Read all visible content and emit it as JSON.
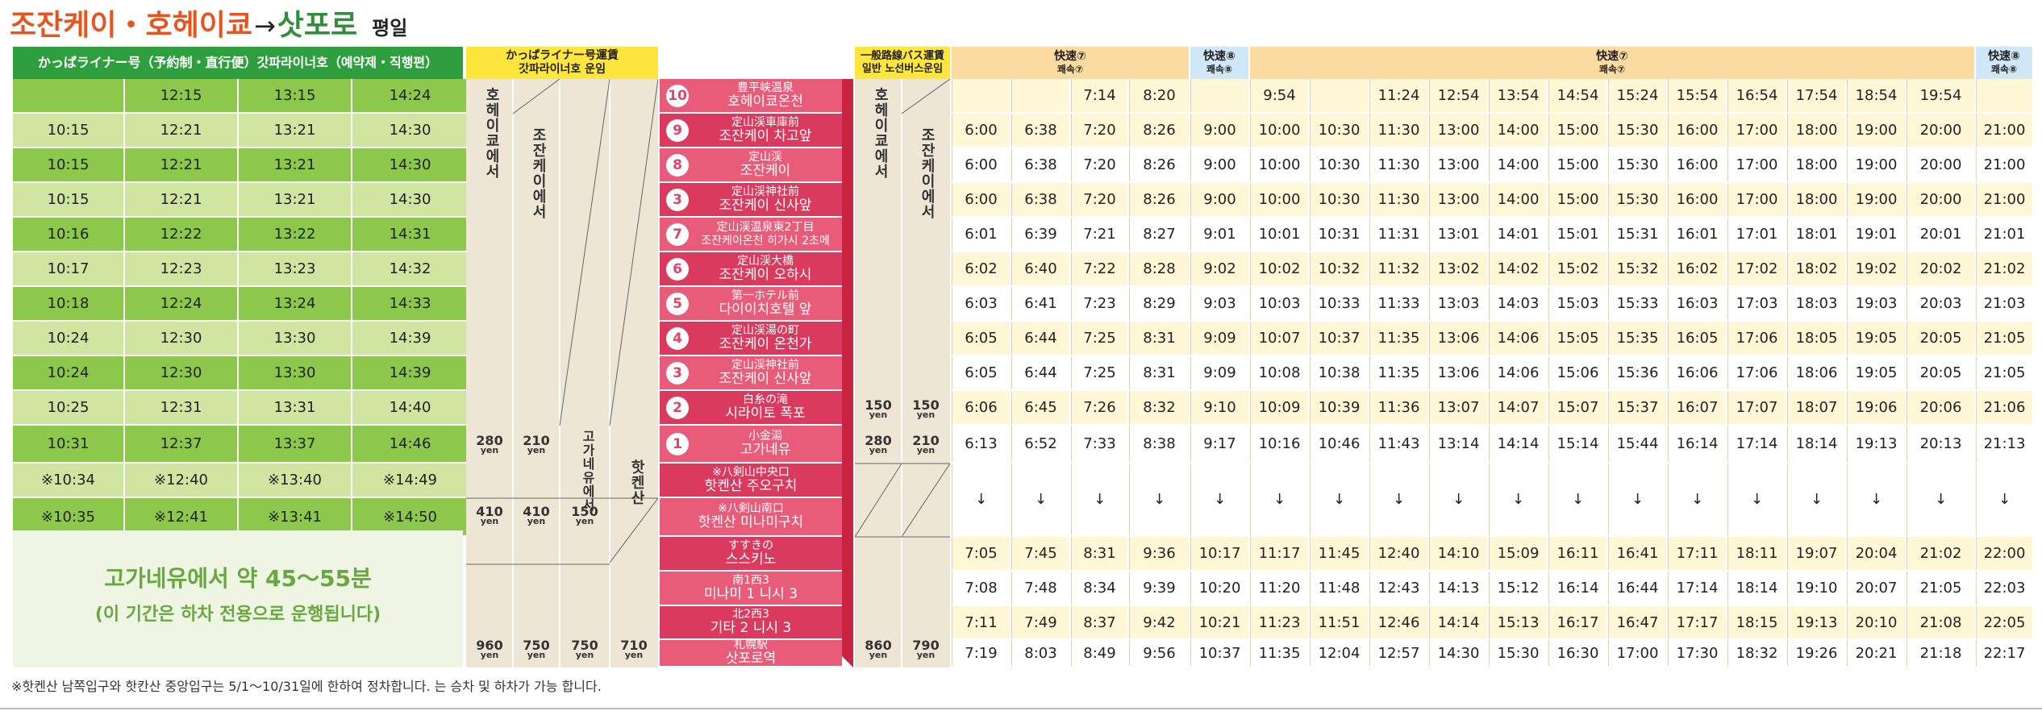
{
  "title": {
    "from_to": "조잔케이・호헤이쿄",
    "arrow": "→",
    "to": "삿포로",
    "day": "평일"
  },
  "colors": {
    "green_header": "#2f9e3e",
    "green_dark": "#8cc84b",
    "green_light": "#cfe5a0",
    "fare_bg": "#ede6d4",
    "stop_pink": "#e85c7a",
    "stop_dark": "#d93a5e",
    "cream": "#fff7d6",
    "orange_header": "#fcdba0",
    "blue_header": "#cfe7f6",
    "yellow_header": "#ffe63c"
  },
  "kappa": {
    "header": "かっぱライナー号（予約制・直行便）갓파라이너호（예약제・직행편）",
    "rows": [
      [
        "",
        "12:15",
        "13:15",
        "14:24"
      ],
      [
        "10:15",
        "12:21",
        "13:21",
        "14:30"
      ],
      [
        "10:15",
        "12:21",
        "13:21",
        "14:30"
      ],
      [
        "10:15",
        "12:21",
        "13:21",
        "14:30"
      ],
      [
        "10:16",
        "12:22",
        "13:22",
        "14:31"
      ],
      [
        "10:17",
        "12:23",
        "13:23",
        "14:32"
      ],
      [
        "10:18",
        "12:24",
        "13:24",
        "14:33"
      ],
      [
        "10:24",
        "12:30",
        "13:30",
        "14:39"
      ],
      [
        "10:24",
        "12:30",
        "13:30",
        "14:39"
      ],
      [
        "10:25",
        "12:31",
        "13:31",
        "14:40"
      ],
      [
        "10:31",
        "12:37",
        "13:37",
        "14:46"
      ],
      [
        "※10:34",
        "※12:40",
        "※13:40",
        "※14:49"
      ],
      [
        "※10:35",
        "※12:41",
        "※13:41",
        "※14:50"
      ]
    ],
    "note_main": "고가네유에서 약 45～55분",
    "note_sub": "(이 기간은 하차 전용으로 운행됩니다)"
  },
  "kappa_fare": {
    "header_jp": "かっぱライナー号運賃",
    "header_kr": "갓파라이너호 운임",
    "col1": "호헤이쿄에서",
    "col2": "조잔케이에서",
    "col3": "고가네유에서",
    "col4": "핫켄산",
    "f280": "280",
    "f210": "210",
    "f410a": "410",
    "f410b": "410",
    "f150": "150",
    "f960": "960",
    "f750a": "750",
    "f750b": "750",
    "f710": "710",
    "yen": "yen"
  },
  "stops": [
    {
      "num": "10",
      "jp": "豊平峡温泉",
      "kr": "호헤이쿄온천"
    },
    {
      "num": "9",
      "jp": "定山渓車庫前",
      "kr": "조잔케이 차고앞"
    },
    {
      "num": "8",
      "jp": "定山渓",
      "kr": "조잔케이"
    },
    {
      "num": "3",
      "jp": "定山渓神社前",
      "kr": "조잔케이 신사앞"
    },
    {
      "num": "7",
      "jp": "定山渓温泉東2丁目",
      "kr": "조잔케이온천 히가시 2초메"
    },
    {
      "num": "6",
      "jp": "定山渓大橋",
      "kr": "조잔케이 오하시"
    },
    {
      "num": "5",
      "jp": "第一ホテル前",
      "kr": "다이이치호텔 앞"
    },
    {
      "num": "4",
      "jp": "定山渓湯の町",
      "kr": "조잔케이 온천가"
    },
    {
      "num": "3",
      "jp": "定山渓神社前",
      "kr": "조잔케이 신사앞"
    },
    {
      "num": "2",
      "jp": "白糸の滝",
      "kr": "시라이토 폭포"
    },
    {
      "num": "1",
      "jp": "小金湯",
      "kr": "고가네유"
    },
    {
      "num": "",
      "jp": "※八剣山中央口",
      "kr": "핫켄산 주오구치"
    },
    {
      "num": "",
      "jp": "※八剣山南口",
      "kr": "핫켄산 미나미구치"
    },
    {
      "num": "",
      "jp": "すすきの",
      "kr": "스스키노"
    },
    {
      "num": "",
      "jp": "南1西3",
      "kr": "미나미 1 니시 3"
    },
    {
      "num": "",
      "jp": "北2西3",
      "kr": "기타 2 니시 3"
    },
    {
      "num": "",
      "jp": "札幌駅",
      "kr": "삿포로역"
    }
  ],
  "bus_fare": {
    "header_jp": "一般路線バス運賃",
    "header_kr": "일반 노선버스운임",
    "col1": "호헤이쿄에서",
    "col2": "조잔케이에서",
    "f150a": "150",
    "f150b": "150",
    "f280": "280",
    "f210": "210",
    "f860": "860",
    "f790": "790",
    "yen": "yen"
  },
  "bus": {
    "headers": [
      {
        "jp": "快速⑦",
        "kr": "쾌속⑦"
      },
      {
        "jp": "快速⑧",
        "kr": "쾌속⑧"
      },
      {
        "jp": "快速⑦",
        "kr": "쾌속⑦"
      },
      {
        "jp": "快速⑧",
        "kr": "쾌속⑧"
      }
    ],
    "rows": [
      [
        "",
        "",
        "7:14",
        "8:20",
        "",
        "9:54",
        "",
        "11:24",
        "12:54",
        "13:54",
        "14:54",
        "15:24",
        "15:54",
        "16:54",
        "17:54",
        "18:54",
        "19:54",
        ""
      ],
      [
        "6:00",
        "6:38",
        "7:20",
        "8:26",
        "9:00",
        "10:00",
        "10:30",
        "11:30",
        "13:00",
        "14:00",
        "15:00",
        "15:30",
        "16:00",
        "17:00",
        "18:00",
        "19:00",
        "20:00",
        "21:00"
      ],
      [
        "6:00",
        "6:38",
        "7:20",
        "8:26",
        "9:00",
        "10:00",
        "10:30",
        "11:30",
        "13:00",
        "14:00",
        "15:00",
        "15:30",
        "16:00",
        "17:00",
        "18:00",
        "19:00",
        "20:00",
        "21:00"
      ],
      [
        "6:00",
        "6:38",
        "7:20",
        "8:26",
        "9:00",
        "10:00",
        "10:30",
        "11:30",
        "13:00",
        "14:00",
        "15:00",
        "15:30",
        "16:00",
        "17:00",
        "18:00",
        "19:00",
        "20:00",
        "21:00"
      ],
      [
        "6:01",
        "6:39",
        "7:21",
        "8:27",
        "9:01",
        "10:01",
        "10:31",
        "11:31",
        "13:01",
        "14:01",
        "15:01",
        "15:31",
        "16:01",
        "17:01",
        "18:01",
        "19:01",
        "20:01",
        "21:01"
      ],
      [
        "6:02",
        "6:40",
        "7:22",
        "8:28",
        "9:02",
        "10:02",
        "10:32",
        "11:32",
        "13:02",
        "14:02",
        "15:02",
        "15:32",
        "16:02",
        "17:02",
        "18:02",
        "19:02",
        "20:02",
        "21:02"
      ],
      [
        "6:03",
        "6:41",
        "7:23",
        "8:29",
        "9:03",
        "10:03",
        "10:33",
        "11:33",
        "13:03",
        "14:03",
        "15:03",
        "15:33",
        "16:03",
        "17:03",
        "18:03",
        "19:03",
        "20:03",
        "21:03"
      ],
      [
        "6:05",
        "6:44",
        "7:25",
        "8:31",
        "9:09",
        "10:07",
        "10:37",
        "11:35",
        "13:06",
        "14:06",
        "15:05",
        "15:35",
        "16:05",
        "17:06",
        "18:05",
        "19:05",
        "20:05",
        "21:05"
      ],
      [
        "6:05",
        "6:44",
        "7:25",
        "8:31",
        "9:09",
        "10:08",
        "10:38",
        "11:35",
        "13:06",
        "14:06",
        "15:06",
        "15:36",
        "16:06",
        "17:06",
        "18:06",
        "19:05",
        "20:05",
        "21:05"
      ],
      [
        "6:06",
        "6:45",
        "7:26",
        "8:32",
        "9:10",
        "10:09",
        "10:39",
        "11:36",
        "13:07",
        "14:07",
        "15:07",
        "15:37",
        "16:07",
        "17:07",
        "18:07",
        "19:06",
        "20:06",
        "21:06"
      ],
      [
        "6:13",
        "6:52",
        "7:33",
        "8:38",
        "9:17",
        "10:16",
        "10:46",
        "11:43",
        "13:14",
        "14:14",
        "15:14",
        "15:44",
        "16:14",
        "17:14",
        "18:14",
        "19:13",
        "20:13",
        "21:13"
      ],
      [
        "↓",
        "↓",
        "↓",
        "↓",
        "↓",
        "↓",
        "↓",
        "↓",
        "↓",
        "↓",
        "↓",
        "↓",
        "↓",
        "↓",
        "↓",
        "↓",
        "↓",
        "↓"
      ],
      [
        "",
        "",
        "",
        "",
        "",
        "",
        "",
        "",
        "",
        "",
        "",
        "",
        "",
        "",
        "",
        "",
        "",
        ""
      ],
      [
        "7:05",
        "7:45",
        "8:31",
        "9:36",
        "10:17",
        "11:17",
        "11:45",
        "12:40",
        "14:10",
        "15:09",
        "16:11",
        "16:41",
        "17:11",
        "18:11",
        "19:07",
        "20:04",
        "21:02",
        "22:00"
      ],
      [
        "7:08",
        "7:48",
        "8:34",
        "9:39",
        "10:20",
        "11:20",
        "11:48",
        "12:43",
        "14:13",
        "15:12",
        "16:14",
        "16:44",
        "17:14",
        "18:14",
        "19:10",
        "20:07",
        "21:05",
        "22:03"
      ],
      [
        "7:11",
        "7:49",
        "8:37",
        "9:42",
        "10:21",
        "11:23",
        "11:51",
        "12:46",
        "14:14",
        "15:13",
        "16:17",
        "16:47",
        "17:17",
        "18:15",
        "19:13",
        "20:10",
        "21:08",
        "22:05"
      ],
      [
        "7:19",
        "8:03",
        "8:49",
        "9:56",
        "10:37",
        "11:35",
        "12:04",
        "12:57",
        "14:30",
        "15:30",
        "16:30",
        "17:00",
        "17:30",
        "18:32",
        "19:26",
        "20:21",
        "21:18",
        "22:17"
      ]
    ]
  },
  "footnote": "※핫켄산 남쪽입구와 핫칸산 중앙입구는 5/1～10/31일에 한하여 정차합니다. 는 승차 및 하차가 가능 합니다."
}
